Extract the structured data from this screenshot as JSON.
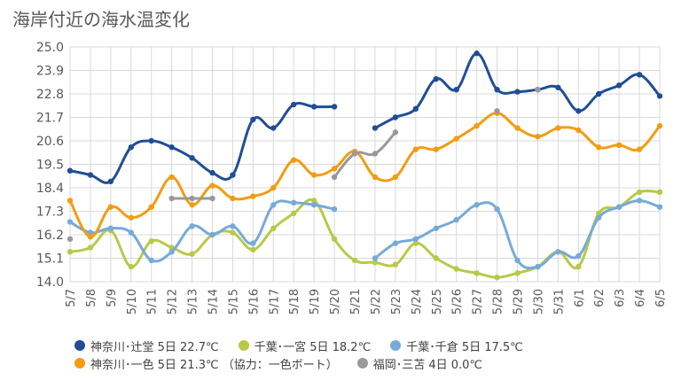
{
  "page": {
    "title": "海岸付近の海水温変化"
  },
  "chart_data": {
    "type": "line",
    "title": "海岸付近の海水温変化",
    "xlabel": "",
    "ylabel": "",
    "ylim": [
      14.0,
      25.0
    ],
    "yticks": [
      "25.0",
      "23.9",
      "22.8",
      "21.7",
      "20.6",
      "19.5",
      "18.4",
      "17.3",
      "16.2",
      "15.1",
      "14.0"
    ],
    "grid": true,
    "legend_position": "bottom",
    "categories": [
      "5/7",
      "5/8",
      "5/9",
      "5/10",
      "5/11",
      "5/12",
      "5/13",
      "5/14",
      "5/15",
      "5/16",
      "5/17",
      "5/18",
      "5/19",
      "5/20",
      "5/21",
      "5/22",
      "5/23",
      "5/24",
      "5/25",
      "5/26",
      "5/27",
      "5/28",
      "5/29",
      "5/30",
      "5/31",
      "6/1",
      "6/2",
      "6/3",
      "6/4",
      "6/5"
    ],
    "series": [
      {
        "name": "神奈川･辻堂 5日 22.7℃",
        "color": "#1f4e96",
        "values": [
          19.2,
          19.0,
          18.7,
          20.3,
          20.6,
          20.3,
          19.8,
          19.1,
          19.0,
          21.6,
          21.2,
          22.3,
          22.2,
          22.2,
          null,
          21.2,
          21.7,
          22.1,
          23.5,
          23.0,
          24.7,
          23.0,
          22.9,
          23.0,
          23.1,
          22.0,
          22.8,
          23.2,
          23.7,
          22.7
        ]
      },
      {
        "name": "千葉･一宮 5日 18.2℃",
        "color": "#b8c948",
        "values": [
          15.4,
          15.6,
          16.4,
          14.7,
          15.9,
          15.6,
          15.3,
          16.2,
          16.3,
          15.5,
          16.5,
          17.2,
          17.8,
          16.0,
          15.0,
          14.9,
          14.8,
          15.8,
          15.1,
          14.6,
          14.4,
          14.2,
          14.4,
          14.7,
          15.4,
          14.7,
          17.2,
          17.5,
          18.2,
          18.2
        ]
      },
      {
        "name": "千葉･千倉 5日 17.5℃",
        "color": "#77aad9",
        "values": [
          16.8,
          16.3,
          16.5,
          16.3,
          15.0,
          15.4,
          16.6,
          16.2,
          16.6,
          15.8,
          17.6,
          17.7,
          17.6,
          17.4,
          null,
          15.1,
          15.8,
          16.0,
          16.5,
          16.9,
          17.6,
          17.4,
          15.0,
          14.7,
          15.4,
          15.2,
          17.0,
          17.5,
          17.8,
          17.5
        ]
      },
      {
        "name": "神奈川･一色 5日 21.3℃",
        "color": "#f39c12",
        "values": [
          17.8,
          16.1,
          17.5,
          17.0,
          17.5,
          18.9,
          17.6,
          18.5,
          17.9,
          18.0,
          18.4,
          19.7,
          19.0,
          19.3,
          20.1,
          18.9,
          18.9,
          20.2,
          20.2,
          20.7,
          21.3,
          21.9,
          21.2,
          20.8,
          21.2,
          21.1,
          20.3,
          20.4,
          20.2,
          21.3
        ]
      },
      {
        "name": "福岡･三苫 4日 0.0℃",
        "color": "#999999",
        "values": [
          16.0,
          null,
          null,
          null,
          null,
          17.9,
          17.9,
          17.9,
          null,
          null,
          null,
          null,
          null,
          18.9,
          20.0,
          20.0,
          21.0,
          null,
          null,
          null,
          null,
          22.0,
          null,
          23.0,
          null,
          null,
          null,
          null,
          null,
          null
        ]
      }
    ]
  },
  "legend": {
    "rows": [
      [
        "神奈川･辻堂 5日 22.7℃",
        "千葉･一宮 5日 18.2℃",
        "千葉･千倉 5日 17.5℃"
      ],
      [
        "神奈川･一色 5日 21.3℃ （協力：一色ボート）",
        "福岡･三苫 4日 0.0℃"
      ]
    ],
    "colors": [
      [
        "#1f4e96",
        "#b8c948",
        "#77aad9"
      ],
      [
        "#f39c12",
        "#999999"
      ]
    ]
  }
}
